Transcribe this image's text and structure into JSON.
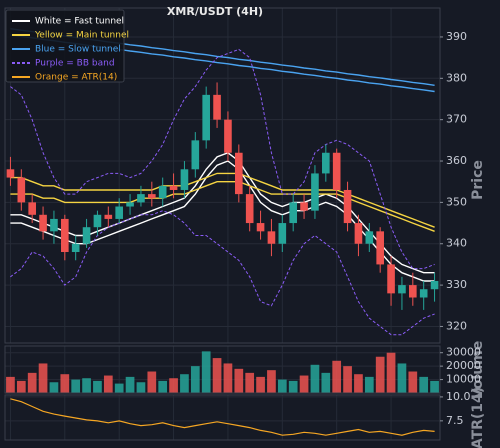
{
  "chart_data": [
    {
      "type": "candlestick",
      "title": "XMR/USDT (4H)",
      "y_label": "Price",
      "up_color": "#26a69a",
      "down_color": "#ef5350",
      "grid": true,
      "legend": "upper left",
      "ylim": [
        316,
        397
      ],
      "yticks": [
        320,
        330,
        340,
        350,
        360,
        370,
        380,
        390
      ],
      "open": [
        358,
        356,
        350,
        347,
        343,
        346,
        338,
        340,
        344,
        347,
        346,
        349,
        350,
        352,
        351,
        354,
        353,
        358,
        365,
        376,
        370,
        362,
        352,
        345,
        343,
        340,
        345,
        350,
        348,
        357,
        362,
        353,
        345,
        340,
        343,
        335,
        328,
        330,
        327,
        329
      ],
      "high": [
        361,
        358,
        352,
        349,
        348,
        347,
        342,
        346,
        348,
        349,
        351,
        352,
        354,
        355,
        356,
        357,
        360,
        367,
        378,
        379,
        372,
        364,
        354,
        348,
        346,
        347,
        352,
        352,
        359,
        364,
        363,
        355,
        347,
        345,
        344,
        337,
        332,
        333,
        331,
        333
      ],
      "low": [
        354,
        348,
        345,
        341,
        340,
        336,
        336,
        339,
        342,
        344,
        345,
        347,
        349,
        349,
        349,
        351,
        351,
        356,
        363,
        368,
        360,
        350,
        343,
        341,
        337,
        338,
        343,
        346,
        346,
        355,
        351,
        343,
        337,
        338,
        333,
        325,
        324,
        325,
        324,
        326
      ],
      "close": [
        356,
        350,
        347,
        343,
        346,
        338,
        340,
        344,
        347,
        346,
        349,
        350,
        352,
        351,
        354,
        353,
        358,
        365,
        376,
        370,
        362,
        352,
        345,
        343,
        340,
        345,
        350,
        348,
        357,
        362,
        353,
        345,
        340,
        343,
        335,
        328,
        330,
        327,
        329,
        331
      ],
      "series": [
        {
          "name": "White = Fast tunnel",
          "color": "#ffffff",
          "upper": [
            347,
            347,
            346,
            345,
            344,
            343,
            342,
            342,
            343,
            344,
            345,
            346,
            347,
            348,
            349,
            350,
            351,
            354,
            358,
            361,
            362,
            360,
            356,
            352,
            350,
            349,
            350,
            350,
            351,
            352,
            351,
            349,
            346,
            343,
            340,
            337,
            335,
            334,
            333,
            333
          ],
          "lower": [
            345,
            345,
            344,
            343,
            342,
            341,
            340,
            340,
            341,
            342,
            343,
            344,
            345,
            346,
            347,
            348,
            349,
            352,
            356,
            359,
            360,
            358,
            354,
            350,
            348,
            347,
            348,
            348,
            349,
            350,
            349,
            347,
            344,
            341,
            338,
            335,
            333,
            332,
            331,
            331
          ]
        },
        {
          "name": "Yellow = Main tunnel",
          "color": "#f5d442",
          "upper": [
            356,
            356,
            355,
            354,
            354,
            353,
            353,
            353,
            353,
            353,
            353,
            353,
            353,
            353,
            354,
            354,
            354,
            355,
            356,
            357,
            357,
            357,
            356,
            355,
            354,
            353,
            353,
            353,
            353,
            353,
            353,
            352,
            351,
            350,
            349,
            348,
            347,
            346,
            345,
            344
          ],
          "lower": [
            352,
            352,
            352,
            351,
            351,
            350,
            350,
            350,
            350,
            350,
            350,
            350,
            351,
            351,
            351,
            352,
            352,
            353,
            354,
            355,
            355,
            355,
            354,
            353,
            352,
            352,
            352,
            352,
            352,
            352,
            352,
            351,
            350,
            349,
            348,
            347,
            346,
            345,
            344,
            343
          ]
        },
        {
          "name": "Blue = Slow tunnel",
          "color": "#4aa3f0",
          "upper": [
            392.0,
            391.6,
            391.3,
            390.9,
            390.6,
            390.2,
            389.9,
            389.5,
            389.2,
            388.8,
            388.5,
            388.1,
            387.8,
            387.4,
            387.1,
            386.7,
            386.4,
            386.0,
            385.7,
            385.3,
            385.0,
            384.6,
            384.3,
            383.9,
            383.6,
            383.2,
            382.9,
            382.5,
            382.2,
            381.8,
            381.5,
            381.1,
            380.8,
            380.4,
            380.1,
            379.7,
            379.4,
            379.0,
            378.7,
            378.3
          ],
          "lower": [
            390.5,
            390.1,
            389.8,
            389.4,
            389.1,
            388.7,
            388.4,
            388.0,
            387.7,
            387.3,
            387.0,
            386.6,
            386.3,
            385.9,
            385.6,
            385.2,
            384.9,
            384.5,
            384.2,
            383.8,
            383.5,
            383.1,
            382.8,
            382.4,
            382.1,
            381.7,
            381.4,
            381.0,
            380.7,
            380.3,
            380.0,
            379.6,
            379.3,
            378.9,
            378.6,
            378.2,
            377.9,
            377.5,
            377.2,
            376.8
          ]
        },
        {
          "name": "Purple = BB band",
          "color": "#8a5cf6",
          "dashed": true,
          "upper": [
            378,
            376,
            370,
            362,
            356,
            352,
            352,
            355,
            356,
            357,
            357,
            356,
            357,
            360,
            364,
            370,
            375,
            378,
            382,
            385,
            386,
            387,
            385,
            376,
            362,
            352,
            352,
            355,
            362,
            364,
            365,
            364,
            362,
            360,
            352,
            344,
            338,
            334,
            334,
            335
          ],
          "lower": [
            332,
            334,
            338,
            337,
            334,
            330,
            332,
            338,
            342,
            344,
            345,
            346,
            347,
            347,
            348,
            347,
            345,
            342,
            342,
            340,
            338,
            336,
            332,
            326,
            325,
            330,
            336,
            340,
            342,
            340,
            338,
            332,
            326,
            322,
            320,
            318,
            318,
            320,
            322,
            323
          ]
        }
      ]
    },
    {
      "type": "bar",
      "y_label": "Volume",
      "grid": true,
      "ylim": [
        0,
        35000
      ],
      "yticks": [
        10000,
        20000,
        30000
      ],
      "values": [
        12000,
        9000,
        15000,
        22000,
        8000,
        14000,
        10000,
        11000,
        9000,
        13000,
        7000,
        12000,
        8000,
        16000,
        9000,
        11000,
        14000,
        20000,
        31000,
        26000,
        22000,
        18000,
        15000,
        12000,
        17000,
        10000,
        9000,
        13000,
        21000,
        15000,
        24000,
        20000,
        14000,
        12000,
        27000,
        30000,
        22000,
        16000,
        12000,
        9000
      ]
    },
    {
      "type": "line",
      "y_label": "ATR(14)",
      "grid": true,
      "ylim": [
        5.5,
        10.2
      ],
      "yticks": [
        {
          "value": 7.5,
          "label": "7.5"
        },
        {
          "value": 10,
          "label": "10.0"
        }
      ],
      "series": [
        {
          "name": "Orange = ATR(14)",
          "color": "#f5a623",
          "values": [
            9.8,
            9.5,
            9.0,
            8.5,
            8.2,
            8.0,
            7.8,
            7.6,
            7.5,
            7.3,
            7.5,
            7.2,
            7.0,
            7.1,
            7.3,
            7.0,
            6.8,
            7.0,
            7.2,
            7.4,
            7.2,
            7.0,
            6.8,
            6.5,
            6.3,
            6.0,
            6.1,
            6.3,
            6.2,
            6.0,
            6.2,
            6.4,
            6.6,
            6.3,
            6.4,
            6.2,
            6.0,
            6.3,
            6.5,
            6.4
          ]
        }
      ]
    }
  ]
}
